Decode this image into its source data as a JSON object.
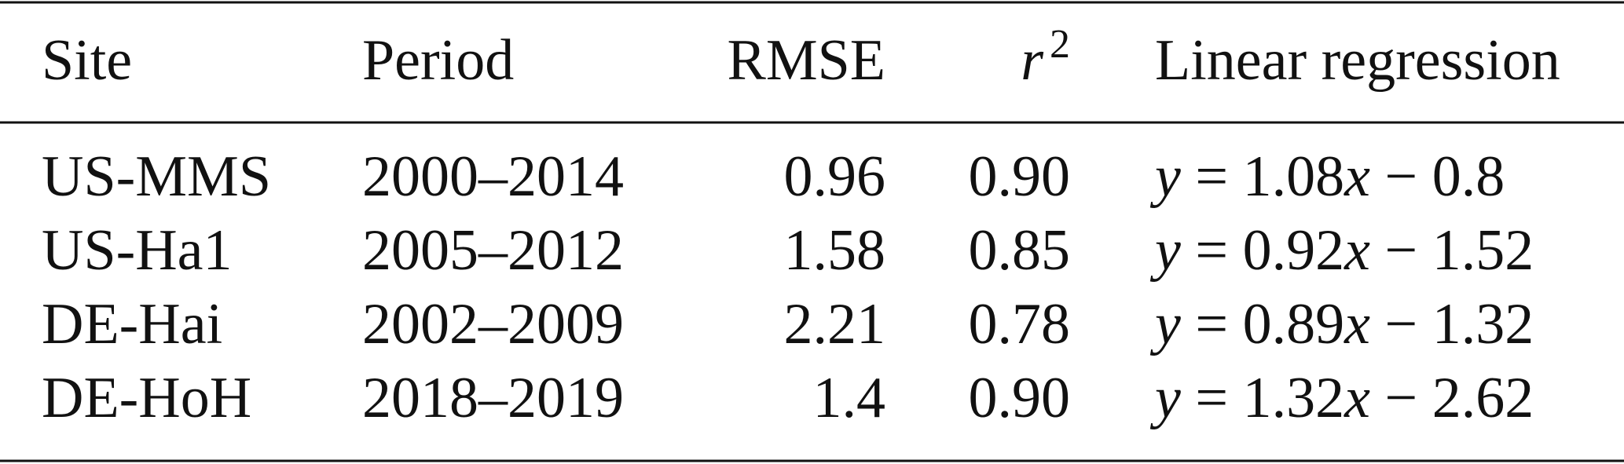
{
  "table": {
    "header": [
      "Site",
      "Period",
      "RMSE",
      {
        "base": "r",
        "sup": "2"
      },
      "Linear regression"
    ],
    "rows": [
      [
        "US-MMS",
        "2000–2014",
        "0.96",
        "0.90",
        "y = 1.08x − 0.8"
      ],
      [
        "US-Ha1",
        "2005–2012",
        "1.58",
        "0.85",
        "y = 0.92x − 1.52"
      ],
      [
        "DE-Hai",
        "2002–2009",
        "2.21",
        "0.78",
        "y = 0.89x − 1.32"
      ],
      [
        "DE-HoH",
        "2018–2019",
        "1.4",
        "0.90",
        "y = 1.32x − 2.62"
      ]
    ]
  }
}
